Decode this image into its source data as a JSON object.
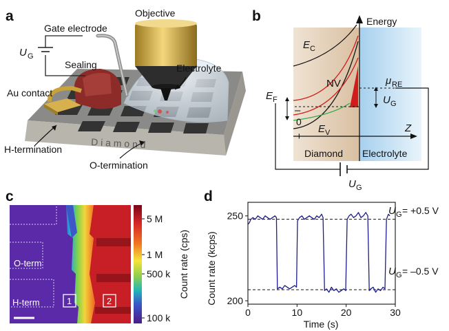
{
  "panel_a": {
    "label": "a",
    "objective": "Objective",
    "gate_electrode": "Gate electrode",
    "ug_sym": "U",
    "ug_sub": "G",
    "sealing": "Sealing",
    "au_contact": "Au contact",
    "electrolyte": "Electrolyte",
    "diamond": "D i a m o n d",
    "h_term": "H-termination",
    "o_term": "O-termination",
    "colors": {
      "diamond_top": "#7f7f7f",
      "diamond_side": "#b5b3ac",
      "pad": "#383838",
      "seal": "#8c2a27",
      "contact": "#c7a23e",
      "objective": "#d3a93f"
    }
  },
  "panel_b": {
    "label": "b",
    "energy": "Energy",
    "ec_sym": "E",
    "ec_sub": "C",
    "ef_sym": "E",
    "ef_sub": "F",
    "ev_sym": "E",
    "ev_sub": "V",
    "nv": "NV",
    "mu_sym": "μ",
    "mu_sub": "RE",
    "ug_sym": "U",
    "ug_sub": "G",
    "minus": "–",
    "zero": "0",
    "plus": "+",
    "z": "Z",
    "diamond": "Diamond",
    "electrolyte": "Electrolyte",
    "colors": {
      "diamond_bg": "#e6d3bd",
      "electrolyte_bg": "#bddcf1",
      "nv_minus": "#d01c1c",
      "nv_zero": "#2ea84a"
    }
  },
  "panel_c": {
    "label": "c",
    "o_term": "O-term",
    "h_term": "H-term",
    "box1": "1",
    "box2": "2",
    "colorbar_ticks": [
      "5 M",
      "1 M",
      "500 k",
      "100 k"
    ],
    "colorbar_label": "Count rate (cps)"
  },
  "panel_d": {
    "label": "d",
    "ann_top_sym": "U",
    "ann_top_sub": "G",
    "ann_top_val": "= +0.5 V",
    "ann_bot_sym": "U",
    "ann_bot_sub": "G",
    "ann_bot_val": "= –0.5 V"
  },
  "chart_data": {
    "type": "line",
    "xlabel": "Time (s)",
    "ylabel": "Count rate (kcps)",
    "xlim": [
      0,
      30
    ],
    "ylim": [
      198,
      258
    ],
    "xticks": [
      "0",
      "10",
      "20",
      "30"
    ],
    "yticks": [
      "200",
      "250"
    ],
    "reference_lines": [
      248,
      206.5
    ],
    "series": [
      {
        "x": [
          0,
          0.3,
          0.6,
          1.0,
          1.5,
          2.0,
          2.5,
          3.0,
          3.5,
          4.0,
          4.5,
          5.0,
          5.5,
          5.8,
          6.0,
          6.5,
          7.0,
          7.5,
          8.0,
          8.5,
          9.0,
          9.5,
          9.9,
          10.1,
          10.5,
          11.0,
          11.5,
          12.0,
          12.5,
          13.0,
          13.5,
          14.0,
          14.5,
          15.0,
          15.3,
          15.6,
          16.0,
          16.5,
          17.0,
          17.5,
          18.0,
          18.5,
          19.0,
          19.5,
          19.9,
          20.2,
          20.6,
          21.0,
          21.5,
          22.0,
          22.5,
          23.0,
          23.5,
          24.0,
          24.4,
          24.7,
          25.0,
          25.5,
          26.0,
          26.5,
          27.0,
          27.5,
          27.9,
          28.2,
          28.6,
          28.9
        ],
        "y": [
          245,
          246,
          248,
          249,
          248,
          250,
          249,
          248,
          250,
          249,
          248,
          249,
          250,
          249,
          207,
          208,
          207,
          209,
          208,
          207,
          208,
          209,
          208,
          247,
          249,
          250,
          248,
          249,
          250,
          249,
          248,
          250,
          249,
          251,
          249,
          206,
          207,
          205,
          208,
          206,
          207,
          205,
          206,
          207,
          206,
          248,
          250,
          251,
          249,
          250,
          252,
          249,
          250,
          252,
          250,
          206,
          207,
          208,
          205,
          207,
          206,
          208,
          207,
          248,
          251,
          250
        ]
      }
    ]
  }
}
